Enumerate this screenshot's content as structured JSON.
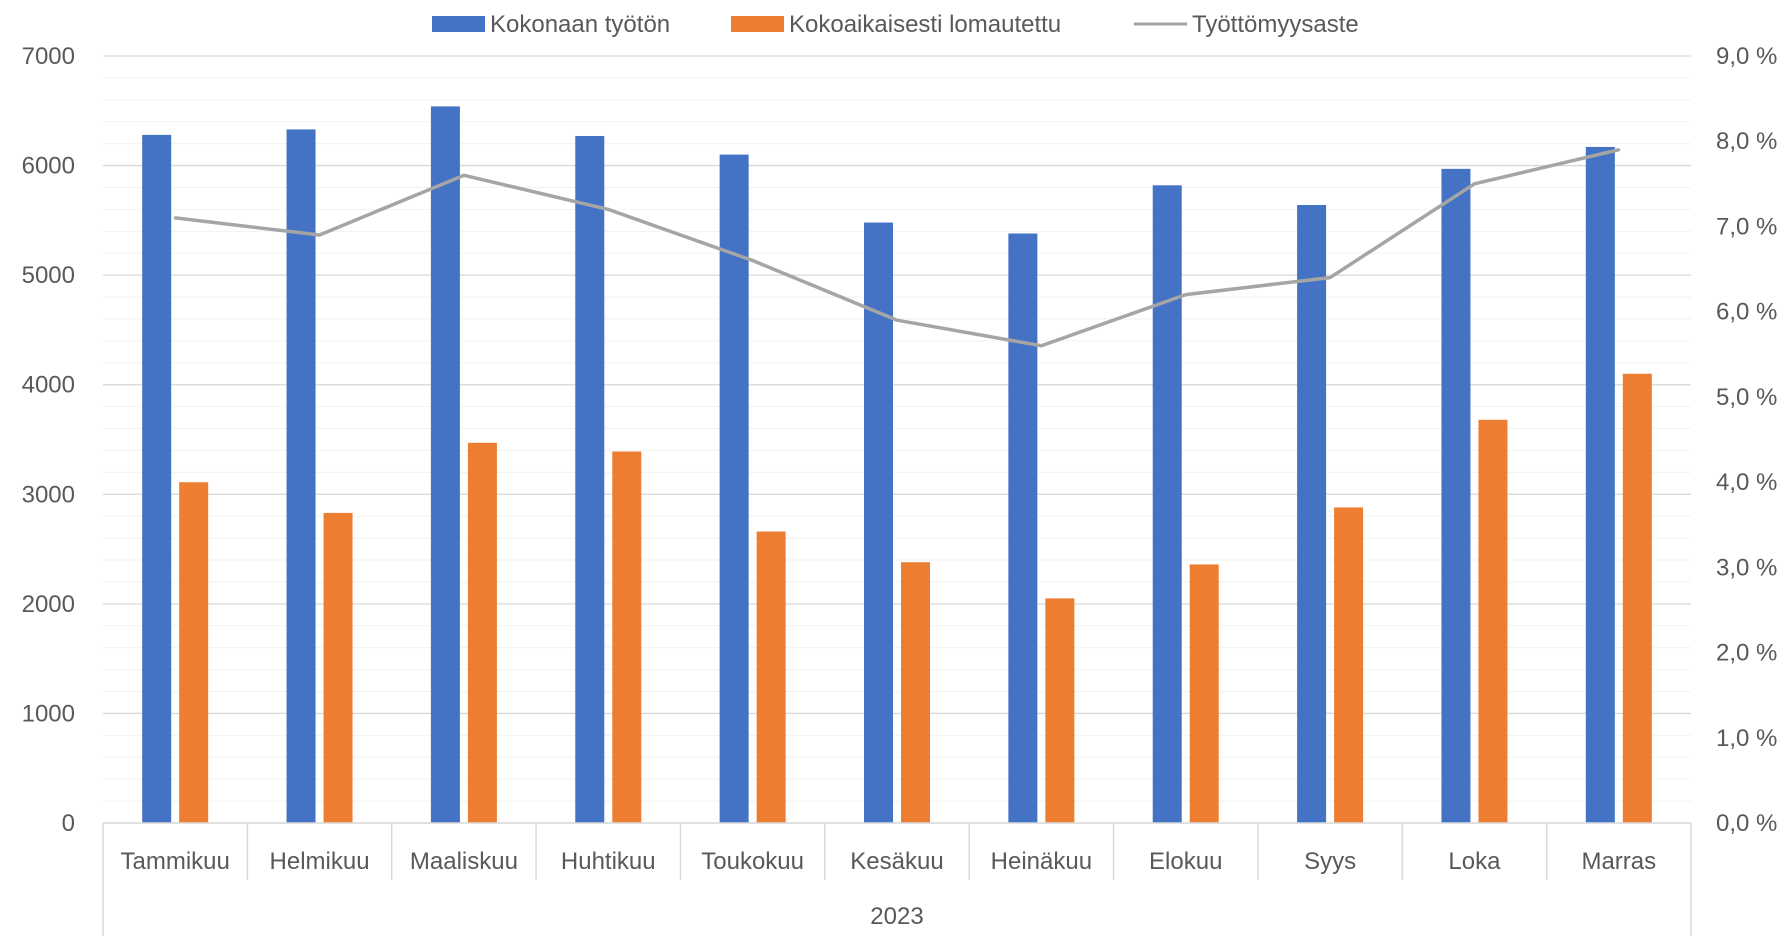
{
  "chart_data": {
    "type": "bar",
    "categories": [
      "Tammikuu",
      "Helmikuu",
      "Maaliskuu",
      "Huhtikuu",
      "Toukokuu",
      "Kesäkuu",
      "Heinäkuu",
      "Elokuu",
      "Syys",
      "Loka",
      "Marras"
    ],
    "group_label": "2023",
    "series": [
      {
        "name": "Kokonaan työtön",
        "type": "bar",
        "axis": "left",
        "color": "#4472C4",
        "values": [
          6280,
          6330,
          6540,
          6270,
          6100,
          5480,
          5380,
          5820,
          5640,
          5970,
          6170
        ]
      },
      {
        "name": "Kokoaikaisesti lomautettu",
        "type": "bar",
        "axis": "left",
        "color": "#ED7D31",
        "values": [
          3110,
          2830,
          3470,
          3390,
          2660,
          2380,
          2050,
          2360,
          2880,
          3680,
          4100
        ]
      },
      {
        "name": "Työttömyysaste",
        "type": "line",
        "axis": "right",
        "color": "#A5A5A5",
        "values": [
          7.1,
          6.9,
          7.6,
          7.2,
          6.6,
          5.9,
          5.6,
          6.2,
          6.4,
          7.5,
          7.9
        ]
      }
    ],
    "ylim": [
      0,
      7000
    ],
    "y_ticks": [
      0,
      1000,
      2000,
      3000,
      4000,
      5000,
      6000,
      7000
    ],
    "y_tick_labels": [
      "0",
      "1000",
      "2000",
      "3000",
      "4000",
      "5000",
      "6000",
      "7000"
    ],
    "y2lim": [
      0,
      9
    ],
    "y2_ticks": [
      0,
      1,
      2,
      3,
      4,
      5,
      6,
      7,
      8,
      9
    ],
    "y2_tick_labels": [
      "0,0 %",
      "1,0 %",
      "2,0 %",
      "3,0 %",
      "4,0 %",
      "5,0 %",
      "6,0 %",
      "7,0 %",
      "8,0 %",
      "9,0 %"
    ],
    "minor_gridlines": true,
    "legend_position": "top"
  }
}
